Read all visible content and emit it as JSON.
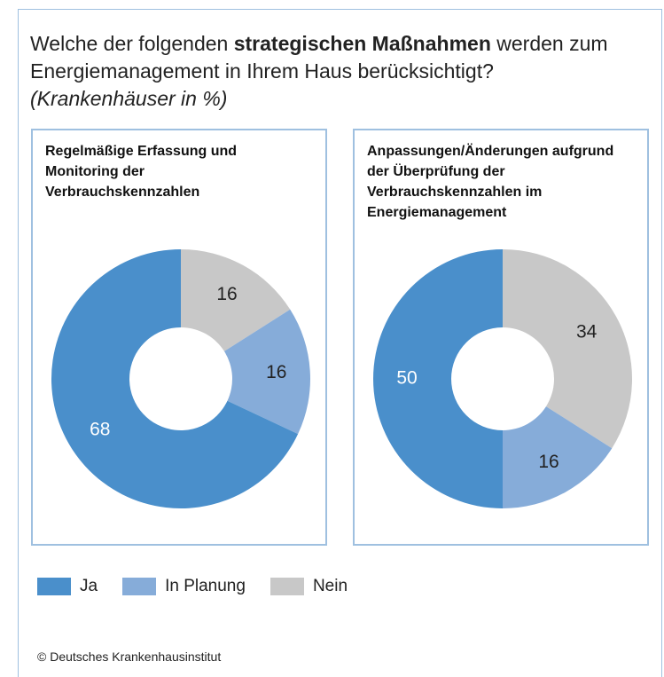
{
  "title_parts": [
    "Welche der folgenden",
    "strategischen Maßnahmen",
    "werden zum Energiemanagement in Ihrem Haus berücksichtigt?"
  ],
  "subtitle": "(Krankenhäuser in %)",
  "source": "© Deutsches Krankenhausinstitut",
  "chart_data": [
    {
      "type": "pie",
      "donut": true,
      "title": "Regelmäßige Erfassung und Monitoring der Verbrauchskennzahlen",
      "categories": [
        "Ja",
        "In Planung",
        "Nein"
      ],
      "values": [
        68,
        16,
        16
      ],
      "colors": [
        "#4a8fcb",
        "#86acd9",
        "#c8c8c8"
      ]
    },
    {
      "type": "pie",
      "donut": true,
      "title": "Anpassungen/Änderungen aufgrund der Überprüfung der Verbrauchskennzahlen im Energiemanagement",
      "categories": [
        "Ja",
        "In Planung",
        "Nein"
      ],
      "values": [
        50,
        16,
        34
      ],
      "colors": [
        "#4a8fcb",
        "#86acd9",
        "#c8c8c8"
      ]
    }
  ]
}
